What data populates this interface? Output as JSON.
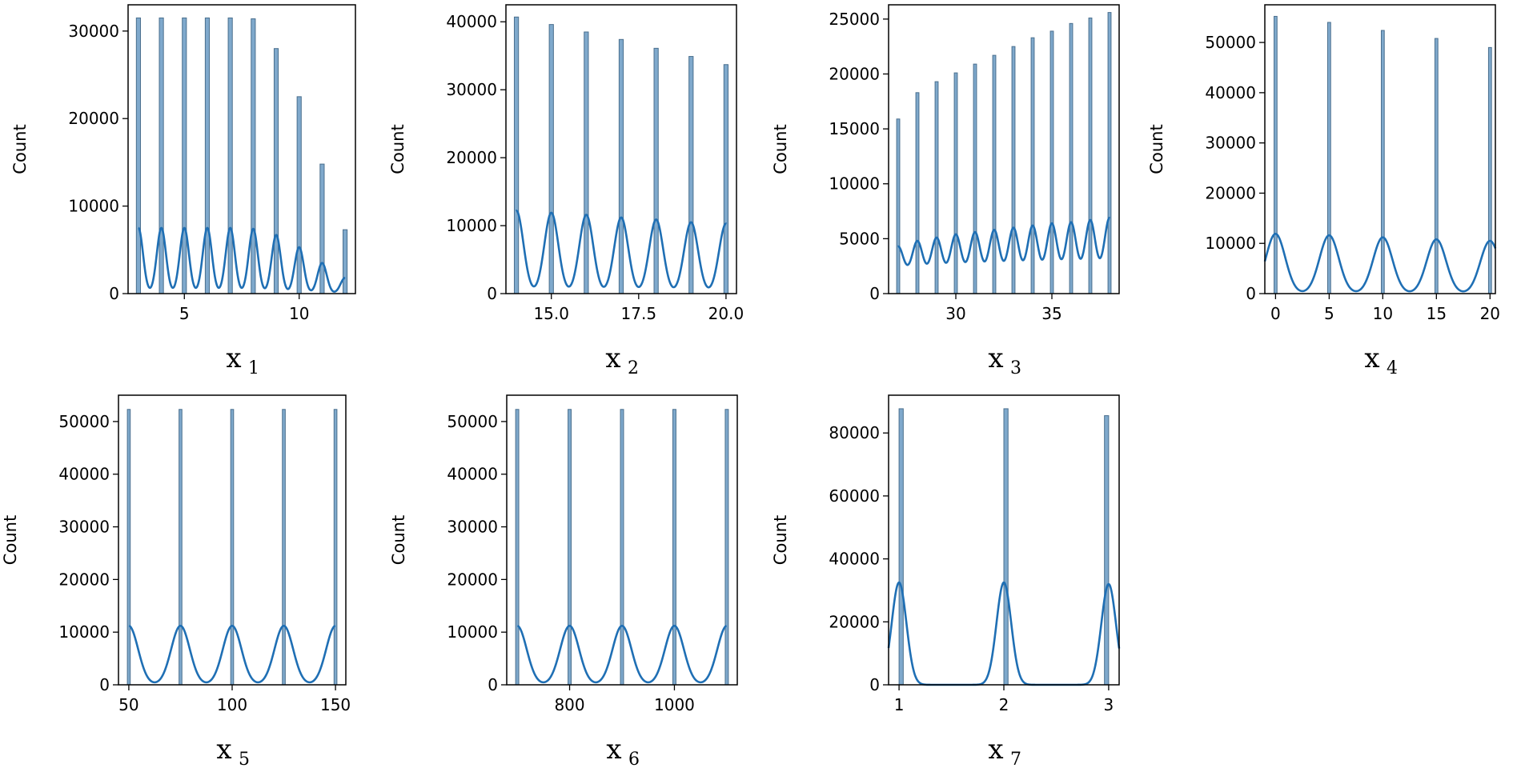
{
  "figure": {
    "colors": {
      "bar_fill": "#7fa9cc",
      "bar_edge": "#4a6f8e",
      "kde": "#1f6fb4",
      "axes": "#000000"
    }
  },
  "chart_data": [
    {
      "type": "bar",
      "ylabel": "Count",
      "xlabel_main": "x",
      "xlabel_sub": "1",
      "xlim": [
        2.55,
        12.45
      ],
      "ylim": [
        0,
        33000
      ],
      "xticks": [
        5,
        10
      ],
      "yticks": [
        0,
        10000,
        20000,
        30000
      ],
      "bars": {
        "x": [
          3,
          4,
          5,
          6,
          7,
          8,
          9,
          10,
          11,
          12
        ],
        "counts": [
          31500,
          31500,
          31500,
          31500,
          31500,
          31400,
          28000,
          22500,
          14800,
          7300
        ],
        "width": 0.18
      },
      "kde": {
        "peaks_x": [
          3,
          4,
          5,
          6,
          7,
          8,
          9,
          10,
          11,
          12
        ],
        "peaks_y": [
          7500,
          7500,
          7500,
          7500,
          7500,
          7400,
          6700,
          5300,
          3500,
          1800
        ],
        "sigma": 0.2
      }
    },
    {
      "type": "bar",
      "ylabel": "Count",
      "xlabel_main": "x",
      "xlabel_sub": "2",
      "xlim": [
        13.7,
        20.3
      ],
      "ylim": [
        0,
        42500
      ],
      "xticks": [
        15.0,
        17.5,
        20.0
      ],
      "xtick_labels": [
        "15.0",
        "17.5",
        "20.0"
      ],
      "yticks": [
        0,
        10000,
        20000,
        30000,
        40000
      ],
      "bars": {
        "x": [
          14,
          15,
          16,
          17,
          18,
          19,
          20
        ],
        "counts": [
          40700,
          39600,
          38500,
          37400,
          36100,
          34900,
          33700
        ],
        "width": 0.12
      },
      "kde": {
        "peaks_x": [
          14,
          15,
          16,
          17,
          18,
          19,
          20
        ],
        "peaks_y": [
          12200,
          11900,
          11600,
          11200,
          10900,
          10500,
          10300
        ],
        "sigma": 0.2
      }
    },
    {
      "type": "bar",
      "ylabel": "Count",
      "xlabel_main": "x",
      "xlabel_sub": "3",
      "xlim": [
        26.5,
        38.5
      ],
      "ylim": [
        0,
        26300
      ],
      "xticks": [
        30,
        35
      ],
      "yticks": [
        0,
        5000,
        10000,
        15000,
        20000,
        25000
      ],
      "bars": {
        "x": [
          27,
          28,
          29,
          30,
          31,
          32,
          33,
          34,
          35,
          36,
          37,
          38
        ],
        "counts": [
          15900,
          18300,
          19300,
          20100,
          20900,
          21700,
          22500,
          23300,
          23900,
          24600,
          25100,
          25600
        ],
        "width": 0.16
      },
      "kde": {
        "peaks_x": [
          27,
          28,
          29,
          30,
          31,
          32,
          33,
          34,
          35,
          36,
          37,
          38
        ],
        "peaks_y": [
          4300,
          4800,
          5100,
          5400,
          5600,
          5800,
          6000,
          6200,
          6400,
          6500,
          6700,
          6900
        ],
        "sigma": 0.25,
        "baseline": 1900
      }
    },
    {
      "type": "bar",
      "ylabel": "Count",
      "xlabel_main": "x",
      "xlabel_sub": "4",
      "xlim": [
        -1,
        20.5
      ],
      "ylim": [
        0,
        57500
      ],
      "xticks": [
        0,
        5,
        10,
        15,
        20
      ],
      "xtick_labels": [
        "0",
        "5",
        "10",
        "15",
        "20"
      ],
      "yticks": [
        0,
        10000,
        20000,
        30000,
        40000,
        50000
      ],
      "bars": {
        "x": [
          0,
          5,
          10,
          15,
          20
        ],
        "counts": [
          55200,
          54000,
          52400,
          50800,
          49000
        ],
        "width": 0.28
      },
      "kde": {
        "peaks_x": [
          0,
          5,
          10,
          15,
          20
        ],
        "peaks_y": [
          11900,
          11600,
          11200,
          10800,
          10500
        ],
        "sigma": 0.9
      }
    },
    {
      "type": "bar",
      "ylabel": "Count",
      "xlabel_main": "x",
      "xlabel_sub": "5",
      "xlim": [
        45,
        155
      ],
      "ylim": [
        0,
        55000
      ],
      "xticks": [
        50,
        100,
        150
      ],
      "yticks": [
        0,
        10000,
        20000,
        30000,
        40000,
        50000
      ],
      "bars": {
        "x": [
          50,
          75,
          100,
          125,
          150
        ],
        "counts": [
          52300,
          52300,
          52300,
          52300,
          52300
        ],
        "width": 1.4
      },
      "kde": {
        "peaks_x": [
          50,
          75,
          100,
          125,
          150
        ],
        "peaks_y": [
          11200,
          11200,
          11200,
          11200,
          11200
        ],
        "sigma": 4.5
      }
    },
    {
      "type": "bar",
      "ylabel": "Count",
      "xlabel_main": "x",
      "xlabel_sub": "6",
      "xlim": [
        680,
        1120
      ],
      "ylim": [
        0,
        55000
      ],
      "xticks": [
        800,
        1000
      ],
      "yticks": [
        0,
        10000,
        20000,
        30000,
        40000,
        50000
      ],
      "bars": {
        "x": [
          700,
          800,
          900,
          1000,
          1100
        ],
        "counts": [
          52300,
          52300,
          52300,
          52300,
          52300
        ],
        "width": 6
      },
      "kde": {
        "peaks_x": [
          700,
          800,
          900,
          1000,
          1100
        ],
        "peaks_y": [
          11200,
          11200,
          11200,
          11200,
          11200
        ],
        "sigma": 18
      }
    },
    {
      "type": "bar",
      "ylabel": "Count",
      "xlabel_main": "x",
      "xlabel_sub": "7",
      "xlim": [
        0.9,
        3.1
      ],
      "ylim": [
        0,
        92000
      ],
      "xticks": [
        1,
        2,
        3
      ],
      "yticks": [
        0,
        20000,
        40000,
        60000,
        80000
      ],
      "bars": {
        "x": [
          1.02,
          2.02,
          2.98
        ],
        "counts": [
          87700,
          87700,
          85500
        ],
        "width": 0.04
      },
      "kde": {
        "peaks_x": [
          1,
          2,
          3
        ],
        "peaks_y": [
          32500,
          32500,
          32000
        ],
        "sigma": 0.07
      }
    }
  ]
}
